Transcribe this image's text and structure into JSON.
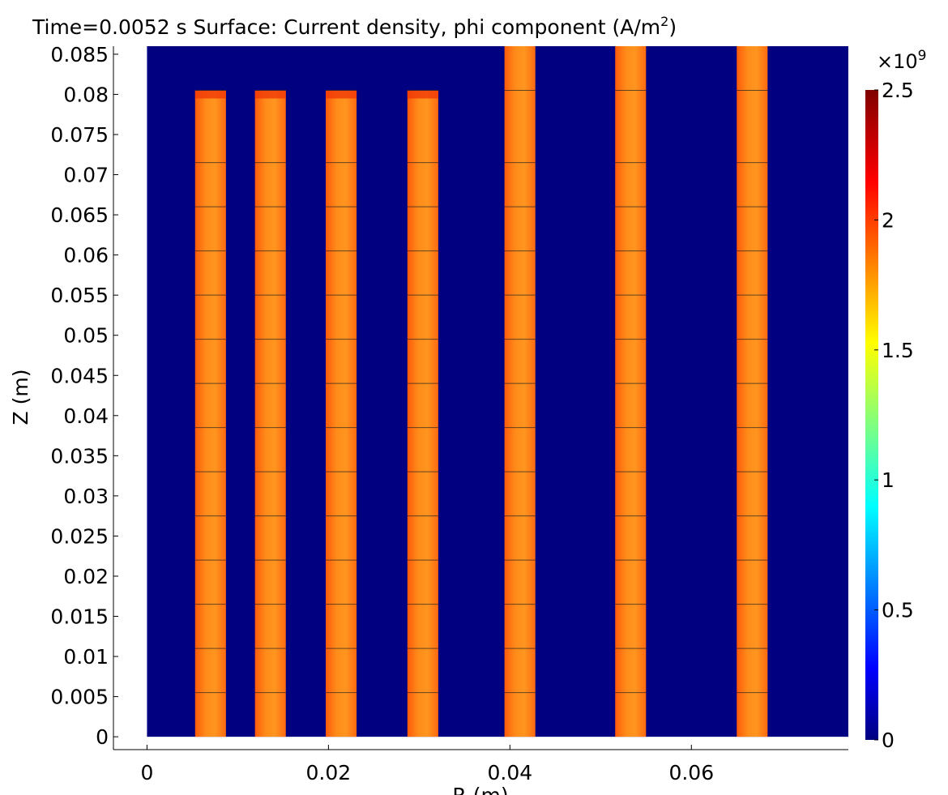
{
  "chart_data": {
    "type": "heatmap",
    "title": "Time=0.0052 s   Surface: Current density, phi component (A/m",
    "title_superscript": "2",
    "title_suffix": ")",
    "xlabel": "R (m)",
    "ylabel": "Z (m)",
    "xlim": [
      -0.0037,
      0.0773
    ],
    "ylim": [
      -0.0016,
      0.086
    ],
    "x_ticks": [
      {
        "value": 0,
        "label": "0"
      },
      {
        "value": 0.02,
        "label": "0.02"
      },
      {
        "value": 0.04,
        "label": "0.04"
      },
      {
        "value": 0.06,
        "label": "0.06"
      }
    ],
    "y_ticks": [
      {
        "value": 0,
        "label": "0"
      },
      {
        "value": 0.005,
        "label": "0.005"
      },
      {
        "value": 0.01,
        "label": "0.01"
      },
      {
        "value": 0.015,
        "label": "0.015"
      },
      {
        "value": 0.02,
        "label": "0.02"
      },
      {
        "value": 0.025,
        "label": "0.025"
      },
      {
        "value": 0.03,
        "label": "0.03"
      },
      {
        "value": 0.035,
        "label": "0.035"
      },
      {
        "value": 0.04,
        "label": "0.04"
      },
      {
        "value": 0.045,
        "label": "0.045"
      },
      {
        "value": 0.05,
        "label": "0.05"
      },
      {
        "value": 0.055,
        "label": "0.055"
      },
      {
        "value": 0.06,
        "label": "0.06"
      },
      {
        "value": 0.065,
        "label": "0.065"
      },
      {
        "value": 0.07,
        "label": "0.07"
      },
      {
        "value": 0.075,
        "label": "0.075"
      },
      {
        "value": 0.08,
        "label": "0.08"
      },
      {
        "value": 0.085,
        "label": "0.085"
      }
    ],
    "domain": {
      "r_min": 0,
      "r_max": 0.0773,
      "z_min": 0,
      "z_max": 0.086,
      "background_value": 0
    },
    "conductors": [
      {
        "r_min": 0.0053,
        "r_max": 0.0087,
        "z_min": 0,
        "z_max": 0.0805,
        "value": 1.95
      },
      {
        "r_min": 0.0119,
        "r_max": 0.0153,
        "z_min": 0,
        "z_max": 0.0805,
        "value": 1.95
      },
      {
        "r_min": 0.0197,
        "r_max": 0.0231,
        "z_min": 0,
        "z_max": 0.0805,
        "value": 1.95
      },
      {
        "r_min": 0.0287,
        "r_max": 0.0321,
        "z_min": 0,
        "z_max": 0.0805,
        "value": 1.95
      },
      {
        "r_min": 0.0394,
        "r_max": 0.0428,
        "z_min": 0,
        "z_max": 0.086,
        "value": 1.95
      },
      {
        "r_min": 0.0516,
        "r_max": 0.055,
        "z_min": 0,
        "z_max": 0.086,
        "value": 1.95
      },
      {
        "r_min": 0.065,
        "r_max": 0.0684,
        "z_min": 0,
        "z_max": 0.086,
        "value": 1.95
      }
    ],
    "mesh_lines_z": [
      0.0055,
      0.011,
      0.0165,
      0.022,
      0.0275,
      0.033,
      0.0385,
      0.044,
      0.0495,
      0.055,
      0.0605,
      0.066,
      0.0715,
      0.0805
    ],
    "colorbar": {
      "exponent_label": "×10",
      "exponent_superscript": "9",
      "min": 0,
      "max": 2.5,
      "ticks": [
        {
          "value": 0,
          "label": "0"
        },
        {
          "value": 0.5,
          "label": "0.5"
        },
        {
          "value": 1,
          "label": "1"
        },
        {
          "value": 1.5,
          "label": "1.5"
        },
        {
          "value": 2,
          "label": "2"
        },
        {
          "value": 2.5,
          "label": "2.5"
        }
      ],
      "colormap": "jet",
      "stops": [
        "#000080",
        "#0000ff",
        "#00ffff",
        "#ffff00",
        "#ff0000",
        "#800000"
      ]
    }
  }
}
